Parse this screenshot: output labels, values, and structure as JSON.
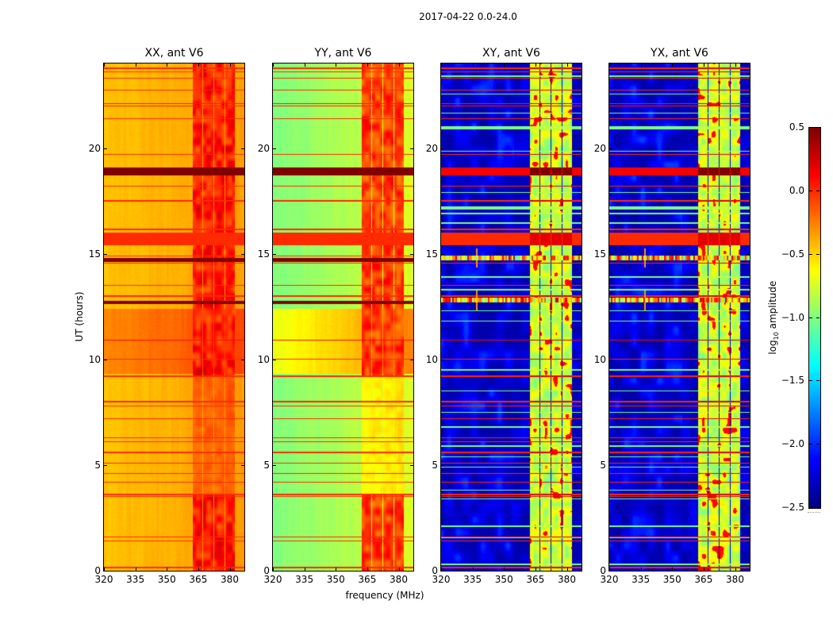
{
  "suptitle": "2017-04-22 0.0-24.0",
  "chart_data": {
    "type": "heatmap",
    "title": "2017-04-22 0.0-24.0",
    "xlabel": "frequency (MHz)",
    "ylabel": "UT (hours)",
    "xlim": [
      320,
      387
    ],
    "ylim": [
      0,
      24
    ],
    "xticks": [
      320,
      335,
      350,
      365,
      380
    ],
    "yticks": [
      0,
      5,
      10,
      15,
      20
    ],
    "colorbar": {
      "label_prefix": "log",
      "label_sub": "10",
      "label_suffix": " amplitude",
      "range": [
        -2.5,
        0.5
      ],
      "ticks": [
        "0.5",
        "0.0",
        "−0.5",
        "−1.0",
        "−1.5",
        "−2.0",
        "−2.5"
      ],
      "tick_values": [
        0.5,
        0.0,
        -0.5,
        -1.0,
        -1.5,
        -2.0,
        -2.5
      ],
      "colormap": "jet"
    },
    "band_columns_MHz": [
      [
        362.3,
        367.0
      ],
      [
        367.5,
        372.3
      ],
      [
        372.8,
        377.5
      ],
      [
        378.0,
        382.6
      ]
    ],
    "panels": [
      {
        "title": "XX, ant V6",
        "kind": "auto",
        "base": -0.45,
        "slope": 0.1,
        "mid_boost": 0.25,
        "band_level": 0.05,
        "seed": 1
      },
      {
        "title": "YY, ant V6",
        "kind": "auto",
        "base": -1.0,
        "slope": 0.25,
        "mid_boost": 0.45,
        "band_level": -0.05,
        "seed": 2
      },
      {
        "title": "XY, ant V6",
        "kind": "cross",
        "base": -2.4,
        "band_level": -0.75,
        "seed": 3
      },
      {
        "title": "YX, ant V6",
        "kind": "cross",
        "base": -2.4,
        "band_level": -0.75,
        "seed": 4
      }
    ],
    "strong_band_hours": [
      18.72,
      19.08
    ],
    "dark_lines_hours": [
      [
        14.62,
        14.78
      ],
      [
        12.62,
        12.78
      ]
    ],
    "ripple_lines_hours": [
      14.8,
      12.8
    ],
    "rfi_lines": [
      {
        "t": 23.77,
        "level": 0.0
      },
      {
        "t": 23.6,
        "level": 0.0
      },
      {
        "t": 23.3,
        "level": 0.0
      },
      {
        "t": 22.75,
        "level": 0.0
      },
      {
        "t": 22.1,
        "level": 0.05
      },
      {
        "t": 22.0,
        "level": 0.05
      },
      {
        "t": 21.4,
        "level": 0.0
      },
      {
        "t": 19.7,
        "level": 0.0
      },
      {
        "t": 18.2,
        "level": 0.0
      },
      {
        "t": 17.5,
        "level": 0.0
      },
      {
        "t": 16.15,
        "level": 0.0
      },
      {
        "t": 15.7,
        "level": 0.0,
        "w": 0.6
      },
      {
        "t": 14.9,
        "level": 0.0
      },
      {
        "t": 14.55,
        "level": 0.0
      },
      {
        "t": 13.5,
        "level": 0.0
      },
      {
        "t": 13.0,
        "level": 0.0
      },
      {
        "t": 10.9,
        "level": 0.1
      },
      {
        "t": 10.0,
        "level": 0.0
      },
      {
        "t": 9.2,
        "level": 0.0
      },
      {
        "t": 8.0,
        "level": 0.0
      },
      {
        "t": 7.8,
        "level": 0.0
      },
      {
        "t": 7.2,
        "level": 0.0
      },
      {
        "t": 6.3,
        "level": 0.0
      },
      {
        "t": 6.1,
        "level": 0.0
      },
      {
        "t": 5.6,
        "level": 0.0
      },
      {
        "t": 5.1,
        "level": 0.0
      },
      {
        "t": 4.6,
        "level": 0.0
      },
      {
        "t": 4.2,
        "level": 0.0
      },
      {
        "t": 3.6,
        "level": 0.0
      },
      {
        "t": 3.5,
        "level": 0.0
      },
      {
        "t": 1.6,
        "level": 0.0
      },
      {
        "t": 1.4,
        "level": 0.0
      },
      {
        "t": 0.15,
        "level": 0.0
      },
      {
        "t": 23.4,
        "level": -1.0,
        "cross_only": true
      },
      {
        "t": 22.55,
        "level": -1.0,
        "cross_only": true
      },
      {
        "t": 21.65,
        "level": -1.0,
        "cross_only": true
      },
      {
        "t": 20.95,
        "level": -1.0,
        "w": 0.15,
        "cross_only": true
      },
      {
        "t": 19.85,
        "level": -1.0,
        "cross_only": true
      },
      {
        "t": 17.9,
        "level": -1.0,
        "cross_only": true
      },
      {
        "t": 17.15,
        "level": -1.0,
        "w": 0.15,
        "cross_only": true
      },
      {
        "t": 16.9,
        "level": -1.0,
        "cross_only": true
      },
      {
        "t": 16.45,
        "level": -1.0,
        "cross_only": true
      },
      {
        "t": 13.9,
        "level": -1.0,
        "cross_only": true
      },
      {
        "t": 13.3,
        "level": -1.0,
        "cross_only": true
      },
      {
        "t": 12.3,
        "level": -1.0,
        "cross_only": true
      },
      {
        "t": 11.8,
        "level": -1.0,
        "cross_only": true
      },
      {
        "t": 9.5,
        "level": -1.0,
        "cross_only": true
      },
      {
        "t": 8.5,
        "level": -1.0,
        "cross_only": true
      },
      {
        "t": 7.5,
        "level": -1.0,
        "cross_only": true
      },
      {
        "t": 6.8,
        "level": -1.0,
        "cross_only": true
      },
      {
        "t": 5.9,
        "level": -1.0,
        "cross_only": true
      },
      {
        "t": 5.4,
        "level": -1.0,
        "cross_only": true
      },
      {
        "t": 4.9,
        "level": -1.0,
        "cross_only": true
      },
      {
        "t": 3.8,
        "level": -1.0,
        "cross_only": true
      },
      {
        "t": 3.4,
        "level": -1.0,
        "cross_only": true
      },
      {
        "t": 2.1,
        "level": -1.0,
        "cross_only": true
      },
      {
        "t": 1.55,
        "level": -1.0,
        "cross_only": true
      },
      {
        "t": 0.3,
        "level": -1.0,
        "cross_only": true
      }
    ]
  }
}
